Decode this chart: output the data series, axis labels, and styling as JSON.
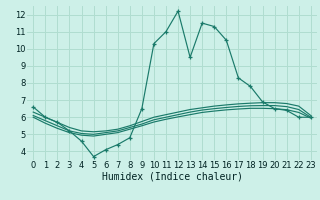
{
  "bg_color": "#cdf0e8",
  "grid_color": "#b0ddd0",
  "line_color": "#1a7a6a",
  "marker_color": "#1a7a6a",
  "xlabel": "Humidex (Indice chaleur)",
  "xlabel_fontsize": 7.0,
  "ylim": [
    3.5,
    12.5
  ],
  "xlim": [
    -0.5,
    23.5
  ],
  "yticks": [
    4,
    5,
    6,
    7,
    8,
    9,
    10,
    11,
    12
  ],
  "xticks": [
    0,
    1,
    2,
    3,
    4,
    5,
    6,
    7,
    8,
    9,
    10,
    11,
    12,
    13,
    14,
    15,
    16,
    17,
    18,
    19,
    20,
    21,
    22,
    23
  ],
  "series": [
    {
      "x": [
        0,
        1,
        2,
        3,
        4,
        5,
        6,
        7,
        8,
        9,
        10,
        11,
        12,
        13,
        14,
        15,
        16,
        17,
        18,
        19,
        20,
        21,
        22,
        23
      ],
      "y": [
        6.6,
        6.0,
        5.7,
        5.2,
        4.6,
        3.7,
        4.1,
        4.4,
        4.8,
        6.5,
        10.3,
        11.0,
        12.2,
        9.5,
        11.5,
        11.3,
        10.5,
        8.3,
        7.8,
        6.9,
        6.5,
        6.4,
        6.0,
        6.0
      ],
      "has_markers": true
    },
    {
      "x": [
        0,
        1,
        2,
        3,
        4,
        5,
        6,
        7,
        8,
        9,
        10,
        11,
        12,
        13,
        14,
        15,
        16,
        17,
        18,
        19,
        20,
        21,
        22,
        23
      ],
      "y": [
        6.3,
        6.0,
        5.7,
        5.4,
        5.2,
        5.15,
        5.2,
        5.3,
        5.5,
        5.75,
        6.0,
        6.15,
        6.3,
        6.45,
        6.55,
        6.65,
        6.72,
        6.78,
        6.82,
        6.85,
        6.85,
        6.8,
        6.65,
        6.1
      ],
      "has_markers": false
    },
    {
      "x": [
        0,
        1,
        2,
        3,
        4,
        5,
        6,
        7,
        8,
        9,
        10,
        11,
        12,
        13,
        14,
        15,
        16,
        17,
        18,
        19,
        20,
        21,
        22,
        23
      ],
      "y": [
        6.1,
        5.8,
        5.5,
        5.2,
        5.05,
        5.0,
        5.1,
        5.2,
        5.4,
        5.6,
        5.85,
        6.0,
        6.15,
        6.3,
        6.42,
        6.5,
        6.57,
        6.63,
        6.67,
        6.68,
        6.68,
        6.62,
        6.45,
        6.0
      ],
      "has_markers": false
    },
    {
      "x": [
        0,
        1,
        2,
        3,
        4,
        5,
        6,
        7,
        8,
        9,
        10,
        11,
        12,
        13,
        14,
        15,
        16,
        17,
        18,
        19,
        20,
        21,
        22,
        23
      ],
      "y": [
        6.0,
        5.65,
        5.35,
        5.1,
        4.95,
        4.9,
        5.0,
        5.1,
        5.3,
        5.5,
        5.72,
        5.88,
        6.02,
        6.15,
        6.28,
        6.36,
        6.43,
        6.48,
        6.52,
        6.52,
        6.5,
        6.44,
        6.28,
        5.95
      ],
      "has_markers": false
    }
  ]
}
